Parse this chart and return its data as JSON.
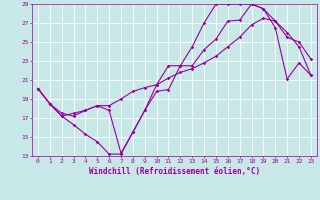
{
  "xlabel": "Windchill (Refroidissement éolien,°C)",
  "bg_color": "#c8e8e8",
  "line_color": "#990099",
  "grid_color": "#ffffff",
  "xlim": [
    -0.5,
    23.5
  ],
  "ylim": [
    13,
    29
  ],
  "xticks": [
    0,
    1,
    2,
    3,
    4,
    5,
    6,
    7,
    8,
    9,
    10,
    11,
    12,
    13,
    14,
    15,
    16,
    17,
    18,
    19,
    20,
    21,
    22,
    23
  ],
  "yticks": [
    13,
    15,
    17,
    19,
    21,
    23,
    25,
    27,
    29
  ],
  "line1_x": [
    0,
    1,
    2,
    3,
    4,
    5,
    6,
    7,
    8,
    9,
    10,
    11,
    12,
    13,
    14,
    15,
    16,
    17,
    18,
    19,
    20,
    21,
    22,
    23
  ],
  "line1_y": [
    20.1,
    18.5,
    17.2,
    16.3,
    15.3,
    14.5,
    13.2,
    13.2,
    15.5,
    17.8,
    19.8,
    20.0,
    22.5,
    22.5,
    24.2,
    25.3,
    27.2,
    27.3,
    29.0,
    28.5,
    26.5,
    21.1,
    22.8,
    21.5
  ],
  "line2_x": [
    0,
    1,
    2,
    3,
    4,
    5,
    6,
    7,
    8,
    9,
    10,
    11,
    12,
    13,
    14,
    15,
    16,
    17,
    18,
    19,
    20,
    21,
    22,
    23
  ],
  "line2_y": [
    20.1,
    18.5,
    17.2,
    17.5,
    17.8,
    18.3,
    17.8,
    13.3,
    15.5,
    17.8,
    20.5,
    22.5,
    22.5,
    24.5,
    27.0,
    29.0,
    29.0,
    29.0,
    29.0,
    28.5,
    27.2,
    25.5,
    25.0,
    23.2
  ],
  "line3_x": [
    0,
    1,
    2,
    3,
    4,
    5,
    6,
    7,
    8,
    9,
    10,
    11,
    12,
    13,
    14,
    15,
    16,
    17,
    18,
    19,
    20,
    21,
    22,
    23
  ],
  "line3_y": [
    20.1,
    18.5,
    17.5,
    17.2,
    17.8,
    18.3,
    18.3,
    19.0,
    19.8,
    20.2,
    20.5,
    21.2,
    21.8,
    22.2,
    22.8,
    23.5,
    24.5,
    25.5,
    26.8,
    27.5,
    27.2,
    26.0,
    24.5,
    21.5
  ],
  "markersize": 1.8,
  "linewidth": 0.8,
  "tick_fontsize": 4.5,
  "label_fontsize": 5.5
}
